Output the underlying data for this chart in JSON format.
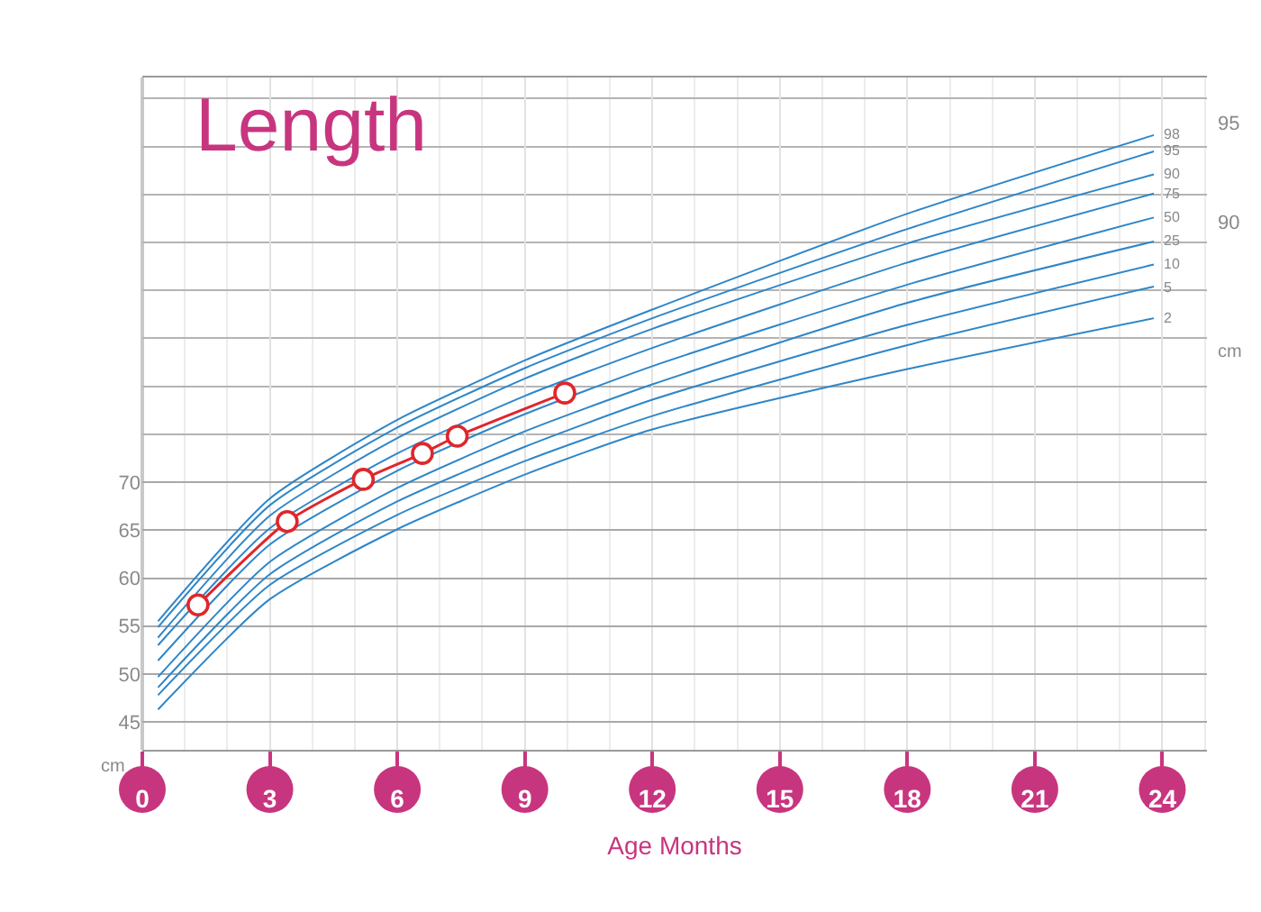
{
  "chart_data": {
    "type": "line",
    "title": "Length",
    "xlabel": "Age Months",
    "ylabel": "cm",
    "y2label": "cm",
    "xlim": [
      0,
      25.05
    ],
    "xticks": [
      0,
      3,
      6,
      9,
      12,
      15,
      18,
      21,
      24
    ],
    "ylim": [
      42.1,
      112.2
    ],
    "yticks": [
      45,
      50,
      55,
      60,
      65,
      70
    ],
    "y2lim": [
      63.5,
      97.4
    ],
    "y2ticks": [
      90,
      95
    ],
    "grid": true,
    "legend": false,
    "marker": "none",
    "line_style": "solid",
    "series": [
      {
        "name": "98",
        "color": "#2e86c8",
        "x": [
          0.37,
          3,
          6,
          9,
          12,
          18,
          23.8
        ],
        "values": [
          55.5,
          68.3,
          76.5,
          82.7,
          88.0,
          98.0,
          106.2
        ]
      },
      {
        "name": "95",
        "color": "#2e86c8",
        "x": [
          0.37,
          3,
          6,
          9,
          12,
          18,
          23.8
        ],
        "values": [
          54.9,
          67.6,
          75.7,
          81.9,
          87.1,
          96.4,
          104.5
        ]
      },
      {
        "name": "90",
        "color": "#2e86c8",
        "x": [
          0.37,
          3,
          6,
          9,
          12,
          18,
          23.8
        ],
        "values": [
          53.8,
          66.5,
          74.6,
          80.8,
          86.0,
          94.9,
          102.1
        ]
      },
      {
        "name": "75",
        "color": "#2e86c8",
        "x": [
          0.37,
          3,
          6,
          9,
          12,
          18,
          23.8
        ],
        "values": [
          53.0,
          65.2,
          73.0,
          79.0,
          84.0,
          92.9,
          100.1
        ]
      },
      {
        "name": "50",
        "color": "#2e86c8",
        "x": [
          0.37,
          3,
          6,
          9,
          12,
          18,
          23.8
        ],
        "values": [
          51.4,
          63.5,
          71.2,
          77.1,
          82.1,
          90.6,
          97.6
        ]
      },
      {
        "name": "25",
        "color": "#2e86c8",
        "x": [
          0.37,
          3,
          6,
          9,
          12,
          18,
          23.8
        ],
        "values": [
          49.7,
          61.7,
          69.4,
          75.3,
          80.2,
          88.7,
          95.1
        ]
      },
      {
        "name": "10",
        "color": "#2e86c8",
        "x": [
          0.37,
          3,
          6,
          9,
          12,
          18,
          23.8
        ],
        "values": [
          48.6,
          60.4,
          68.0,
          73.7,
          78.6,
          86.4,
          92.7
        ]
      },
      {
        "name": "5",
        "color": "#2e86c8",
        "x": [
          0.37,
          3,
          6,
          9,
          12,
          18,
          23.8
        ],
        "values": [
          47.8,
          59.3,
          66.6,
          72.2,
          76.9,
          84.3,
          90.4
        ]
      },
      {
        "name": "2",
        "color": "#2e86c8",
        "x": [
          0.37,
          3,
          6,
          9,
          12,
          18,
          23.8
        ],
        "values": [
          46.3,
          57.8,
          65.1,
          70.8,
          75.5,
          81.8,
          87.1
        ]
      },
      {
        "type": "line",
        "marker": "circle",
        "color": "#e0262b",
        "x": [
          1.31,
          3.41,
          5.2,
          6.59,
          7.41,
          9.94
        ],
        "values": [
          57.2,
          65.9,
          70.3,
          73.0,
          74.8,
          79.3
        ]
      }
    ]
  }
}
